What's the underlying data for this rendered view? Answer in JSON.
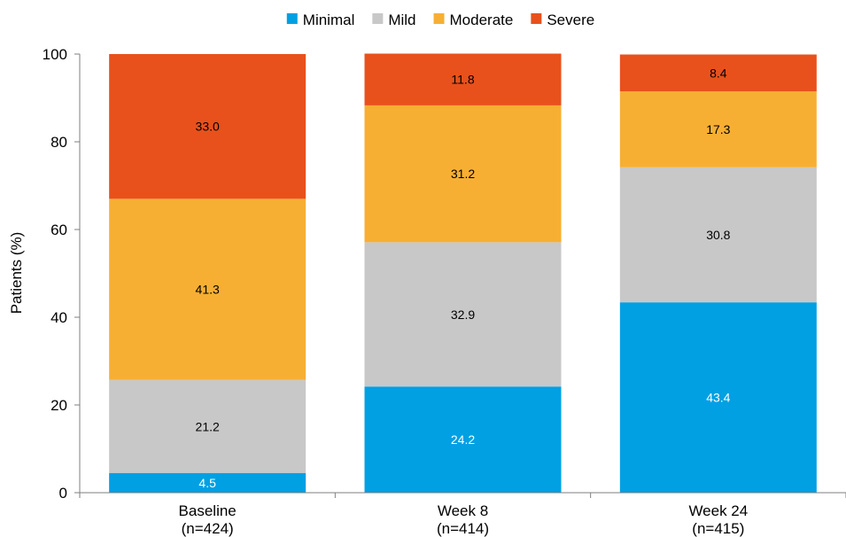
{
  "chart_data": {
    "type": "bar",
    "stacked": true,
    "categories": [
      "Baseline",
      "Week 8",
      "Week 24"
    ],
    "category_sublabels": [
      "(n=424)",
      "(n=414)",
      "(n=415)"
    ],
    "series": [
      {
        "name": "Minimal",
        "color": "#00A0E3",
        "values": [
          4.5,
          24.2,
          43.4
        ],
        "label_color": "#ffffff"
      },
      {
        "name": "Mild",
        "color": "#C8C8C8",
        "values": [
          21.2,
          32.9,
          30.8
        ],
        "label_color": "#000000"
      },
      {
        "name": "Moderate",
        "color": "#F7AF33",
        "values": [
          41.3,
          31.2,
          17.3
        ],
        "label_color": "#000000"
      },
      {
        "name": "Severe",
        "color": "#E8511C",
        "values": [
          33.0,
          11.8,
          8.4
        ],
        "label_color": "#000000"
      }
    ],
    "ylabel": "Patients (%)",
    "xlabel": "",
    "title": "",
    "ylim": [
      0,
      100
    ],
    "yticks": [
      0,
      20,
      40,
      60,
      80,
      100
    ],
    "legend_position": "top",
    "grid": false
  }
}
